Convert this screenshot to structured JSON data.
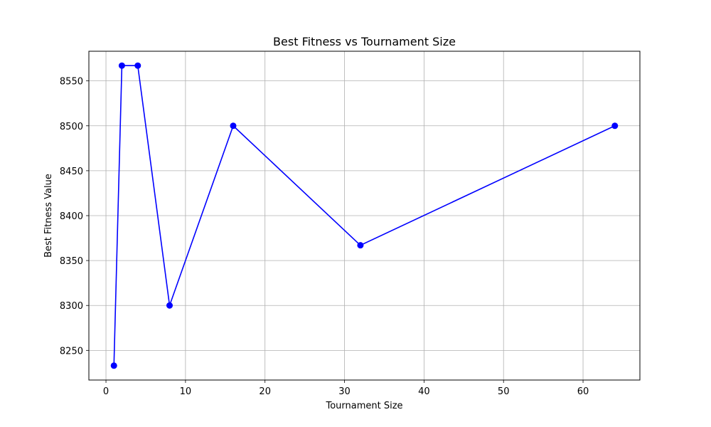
{
  "chart_data": {
    "type": "line",
    "title": "Best Fitness vs Tournament Size",
    "xlabel": "Tournament Size",
    "ylabel": "Best Fitness Value",
    "xlim": [
      -2.15,
      67.15
    ],
    "ylim": [
      8217,
      8583
    ],
    "xticks": [
      0,
      10,
      20,
      30,
      40,
      50,
      60
    ],
    "yticks": [
      8250,
      8300,
      8350,
      8400,
      8450,
      8500,
      8550
    ],
    "grid": true,
    "series": [
      {
        "color": "#0000ff",
        "marker": "circle",
        "x": [
          1,
          2,
          4,
          8,
          16,
          32,
          64
        ],
        "y": [
          8233,
          8567,
          8567,
          8300,
          8500,
          8367,
          8500
        ]
      }
    ]
  }
}
